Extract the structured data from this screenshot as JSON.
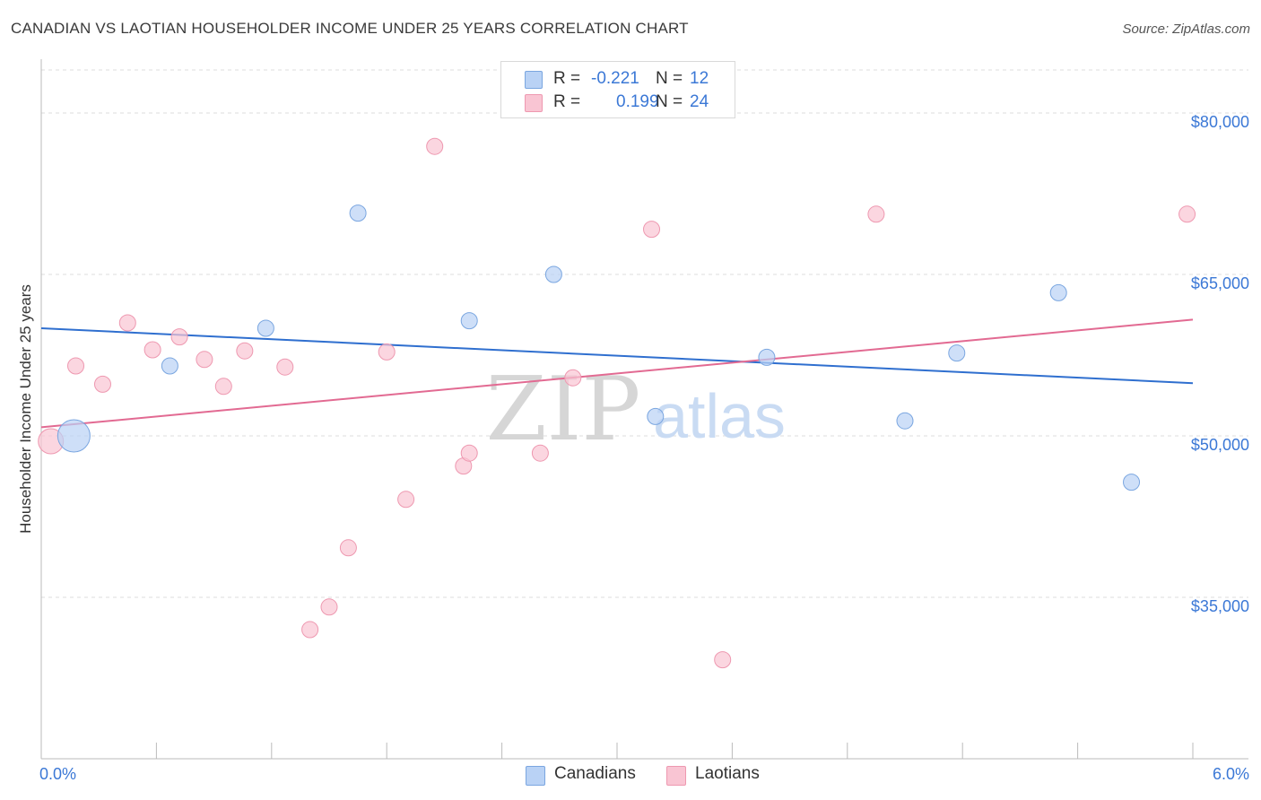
{
  "title": "CANADIAN VS LAOTIAN HOUSEHOLDER INCOME UNDER 25 YEARS CORRELATION CHART",
  "source": "Source: ZipAtlas.com",
  "watermark": {
    "zip": "ZIP",
    "atlas": "atlas"
  },
  "colors": {
    "canadians_fill": "#b9d2f5",
    "canadians_stroke": "#7aa6e0",
    "canadians_line": "#2f6fcf",
    "laotians_fill": "#f9c5d3",
    "laotians_stroke": "#ee98b0",
    "laotians_line": "#e26a92",
    "axis_label": "#3b78d6",
    "grid": "#dddddd"
  },
  "legend_top": {
    "rows": [
      {
        "r_label": "R =",
        "r_value": "-0.221",
        "n_label": "N =",
        "n_value": "12"
      },
      {
        "r_label": "R =",
        "r_value": "0.199",
        "n_label": "N =",
        "n_value": "24"
      }
    ]
  },
  "legend_bottom": [
    "Canadians",
    "Laotians"
  ],
  "chart_data": {
    "type": "scatter",
    "xlabel": "",
    "ylabel": "Householder Income Under 25 years",
    "xlim": [
      0.0,
      6.0
    ],
    "ylim": [
      20000,
      84000
    ],
    "x_tick_labels": [
      "0.0%",
      "6.0%"
    ],
    "y_ticks": [
      35000,
      50000,
      65000,
      80000
    ],
    "y_tick_labels": [
      "$35,000",
      "$50,000",
      "$65,000",
      "$80,000"
    ],
    "grid": true,
    "series": [
      {
        "name": "Canadians",
        "points": [
          {
            "x": 0.17,
            "y": 50000,
            "size": "large"
          },
          {
            "x": 0.67,
            "y": 56500
          },
          {
            "x": 1.17,
            "y": 60000
          },
          {
            "x": 1.65,
            "y": 70700
          },
          {
            "x": 2.23,
            "y": 60700
          },
          {
            "x": 2.67,
            "y": 65000
          },
          {
            "x": 3.2,
            "y": 51800
          },
          {
            "x": 3.78,
            "y": 57300
          },
          {
            "x": 4.5,
            "y": 51400
          },
          {
            "x": 4.77,
            "y": 57700
          },
          {
            "x": 5.3,
            "y": 63300
          },
          {
            "x": 5.68,
            "y": 45700
          }
        ],
        "trend": {
          "x": [
            0.0,
            6.0
          ],
          "y": [
            60000,
            54900
          ]
        }
      },
      {
        "name": "Laotians",
        "points": [
          {
            "x": 0.05,
            "y": 49500,
            "size": "large"
          },
          {
            "x": 0.18,
            "y": 56500
          },
          {
            "x": 0.32,
            "y": 54800
          },
          {
            "x": 0.45,
            "y": 60500
          },
          {
            "x": 0.58,
            "y": 58000
          },
          {
            "x": 0.72,
            "y": 59200
          },
          {
            "x": 0.85,
            "y": 57100
          },
          {
            "x": 0.95,
            "y": 54600
          },
          {
            "x": 1.06,
            "y": 57900
          },
          {
            "x": 1.27,
            "y": 56400
          },
          {
            "x": 1.4,
            "y": 32000
          },
          {
            "x": 1.5,
            "y": 34100
          },
          {
            "x": 1.6,
            "y": 39600
          },
          {
            "x": 1.8,
            "y": 57800
          },
          {
            "x": 1.9,
            "y": 44100
          },
          {
            "x": 2.05,
            "y": 76900
          },
          {
            "x": 2.2,
            "y": 47200
          },
          {
            "x": 2.23,
            "y": 48400
          },
          {
            "x": 2.6,
            "y": 48400
          },
          {
            "x": 2.77,
            "y": 55400
          },
          {
            "x": 3.18,
            "y": 69200
          },
          {
            "x": 3.55,
            "y": 29200
          },
          {
            "x": 4.35,
            "y": 70600
          },
          {
            "x": 5.97,
            "y": 70600
          }
        ],
        "trend": {
          "x": [
            0.0,
            6.0
          ],
          "y": [
            50800,
            60800
          ]
        }
      }
    ]
  }
}
